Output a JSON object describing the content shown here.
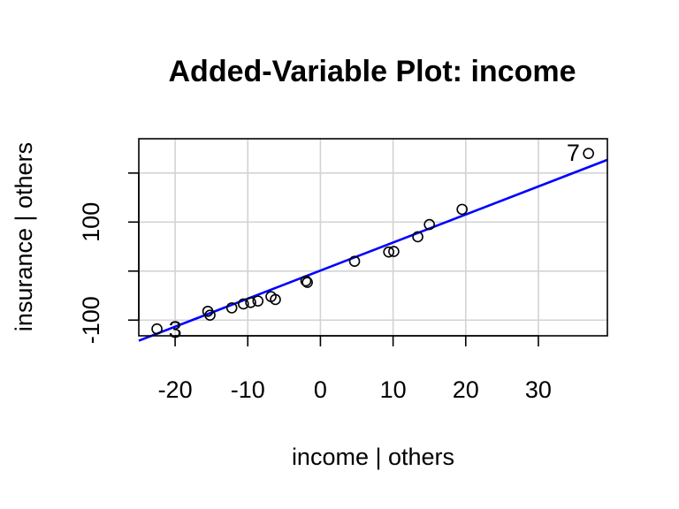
{
  "chart_data": {
    "type": "scatter",
    "title": "Added-Variable Plot: income",
    "xlabel": "income | others",
    "ylabel": "insurance  | others",
    "xlim": [
      -25,
      39.5
    ],
    "ylim": [
      -132,
      270
    ],
    "xticks": [
      -20,
      -10,
      0,
      10,
      20,
      30
    ],
    "yticks": [
      -100,
      0,
      100,
      200
    ],
    "ytick_labels": [
      "-100",
      "",
      "100",
      ""
    ],
    "grid": true,
    "points": [
      {
        "x": -22.5,
        "y": -118,
        "label": ""
      },
      {
        "x": -15.5,
        "y": -82,
        "label": ""
      },
      {
        "x": -15.2,
        "y": -90,
        "label": ""
      },
      {
        "x": -12.2,
        "y": -75,
        "label": ""
      },
      {
        "x": -10.6,
        "y": -67,
        "label": ""
      },
      {
        "x": -9.6,
        "y": -64,
        "label": ""
      },
      {
        "x": -8.6,
        "y": -61,
        "label": ""
      },
      {
        "x": -6.8,
        "y": -52,
        "label": ""
      },
      {
        "x": -6.2,
        "y": -58,
        "label": ""
      },
      {
        "x": -2.0,
        "y": -20,
        "label": ""
      },
      {
        "x": -1.8,
        "y": -23,
        "label": ""
      },
      {
        "x": 4.7,
        "y": 20,
        "label": ""
      },
      {
        "x": 9.4,
        "y": 39,
        "label": ""
      },
      {
        "x": 10.1,
        "y": 40,
        "label": ""
      },
      {
        "x": 13.4,
        "y": 70,
        "label": ""
      },
      {
        "x": 15.0,
        "y": 95,
        "label": ""
      },
      {
        "x": 19.5,
        "y": 126,
        "label": ""
      },
      {
        "x": 36.9,
        "y": 240,
        "label": "7"
      }
    ],
    "annotations": [
      {
        "text": "3",
        "x": -20.0,
        "y": -118
      },
      {
        "text": "7",
        "x": 34.8,
        "y": 243
      }
    ],
    "fit_line": {
      "x": [
        -25,
        39.5
      ],
      "y": [
        -142,
        227
      ],
      "color": "#0000ff"
    },
    "colors": {
      "points": "#000000",
      "line": "#0000ff",
      "grid": "#d3d3d3",
      "frame": "#000000"
    }
  }
}
